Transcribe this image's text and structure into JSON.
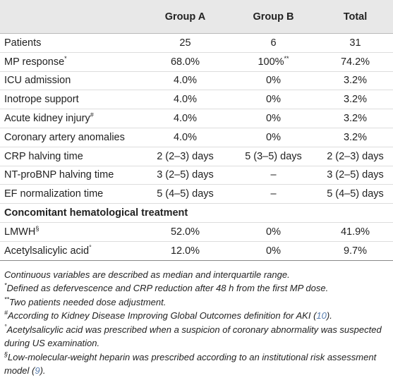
{
  "table": {
    "columns": [
      "Group A",
      "Group B",
      "Total"
    ],
    "rows": [
      {
        "label": "Patients",
        "cells": [
          "25",
          "6",
          "31"
        ]
      },
      {
        "label": "MP response",
        "sup": "*",
        "cells": [
          "68.0%",
          {
            "text": "100%",
            "sup": "**"
          },
          "74.2%"
        ]
      },
      {
        "label": "ICU admission",
        "cells": [
          "4.0%",
          "0%",
          "3.2%"
        ]
      },
      {
        "label": "Inotrope support",
        "cells": [
          "4.0%",
          "0%",
          "3.2%"
        ]
      },
      {
        "label": "Acute kidney injury",
        "sup": "#",
        "cells": [
          "4.0%",
          "0%",
          "3.2%"
        ]
      },
      {
        "label": "Coronary artery anomalies",
        "cells": [
          "4.0%",
          "0%",
          "3.2%"
        ]
      },
      {
        "label": "CRP halving time",
        "cells": [
          "2 (2–3) days",
          "5 (3–5) days",
          "2 (2–3) days"
        ]
      },
      {
        "label": "NT-proBNP halving time",
        "cells": [
          "3 (2–5) days",
          "–",
          "3 (2–5) days"
        ]
      },
      {
        "label": "EF normalization time",
        "cells": [
          "5 (4–5) days",
          "–",
          "5 (4–5) days"
        ]
      },
      {
        "section": "Concomitant hematological treatment"
      },
      {
        "label": "LMWH",
        "sup": "§",
        "cells": [
          "52.0%",
          "0%",
          "41.9%"
        ]
      },
      {
        "label": "Acetylsalicylic acid",
        "sup": "°",
        "cells": [
          "12.0%",
          "0%",
          "9.7%"
        ]
      }
    ]
  },
  "footnotes": [
    {
      "text": "Continuous variables are described as median and interquartile range."
    },
    {
      "mark": "*",
      "text": "Defined as defervescence and CRP reduction after 48 h from the first MP dose."
    },
    {
      "mark": "**",
      "text": "Two patients needed dose adjustment."
    },
    {
      "mark": "#",
      "text": "According to Kidney Disease Improving Global Outcomes definition for AKI (",
      "ref": "10",
      "after": ")."
    },
    {
      "mark": "°",
      "text": "Acetylsalicylic acid was prescribed when a suspicion of coronary abnormality was suspected during US examination."
    },
    {
      "mark": "§",
      "text": "Low-molecular-weight heparin was prescribed according to an institutional risk assessment model (",
      "ref": "9",
      "after": ")."
    }
  ]
}
